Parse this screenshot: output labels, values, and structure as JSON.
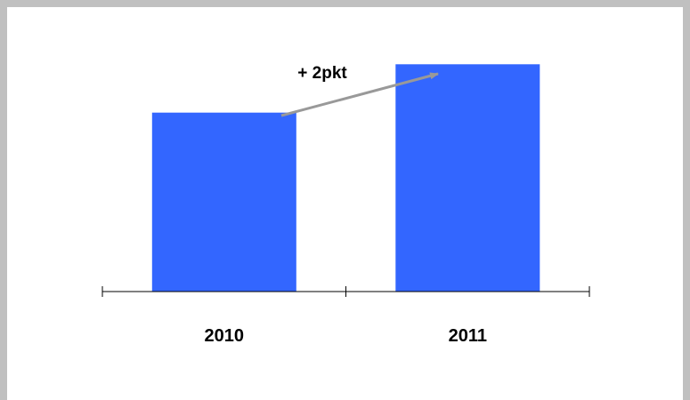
{
  "chart_data": {
    "type": "bar",
    "categories": [
      "2010",
      "2011"
    ],
    "values": [
      7.4,
      9.4
    ],
    "ylim": [
      0,
      10
    ],
    "grid": false,
    "legend": "none",
    "title": "",
    "xlabel": "",
    "ylabel": "",
    "annotation": {
      "text": "+ 2pkt",
      "type": "arrow"
    },
    "colors": {
      "bar": "#3366ff",
      "axis": "#000000",
      "arrow": "#999999",
      "frame": "#c0c0c0"
    }
  }
}
